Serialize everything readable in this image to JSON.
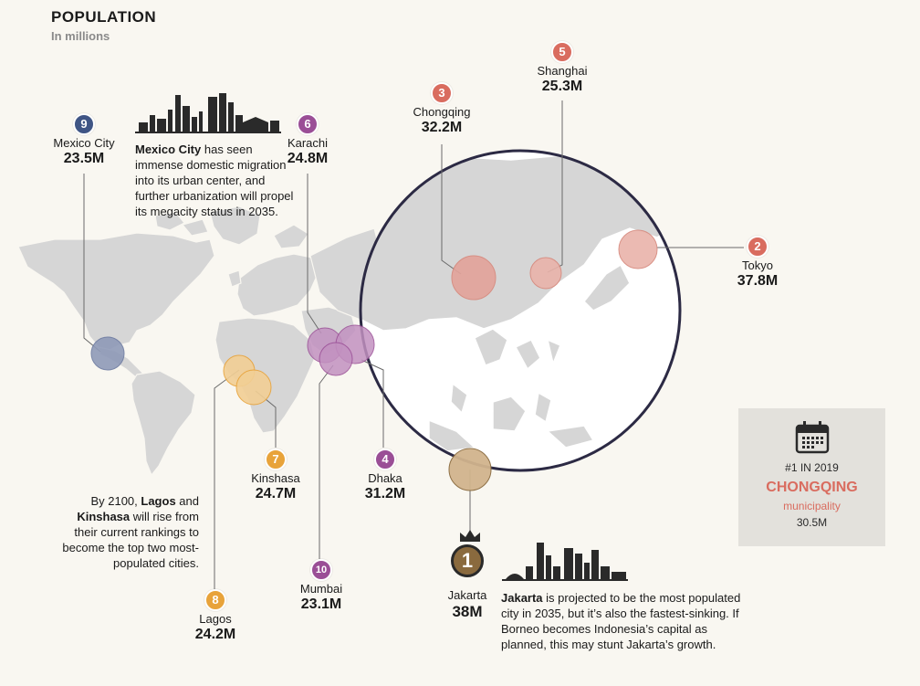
{
  "header": {
    "title": "POPULATION",
    "subtitle": "In millions"
  },
  "cities": [
    {
      "rank": "1",
      "name": "Jakarta",
      "population": "38M",
      "color": "#8a6a3e"
    },
    {
      "rank": "2",
      "name": "Tokyo",
      "population": "37.8M",
      "color": "#d96c5f"
    },
    {
      "rank": "3",
      "name": "Chongqing",
      "population": "32.2M",
      "color": "#d96c5f"
    },
    {
      "rank": "4",
      "name": "Dhaka",
      "population": "31.2M",
      "color": "#9a4e96"
    },
    {
      "rank": "5",
      "name": "Shanghai",
      "population": "25.3M",
      "color": "#d96c5f"
    },
    {
      "rank": "6",
      "name": "Karachi",
      "population": "24.8M",
      "color": "#9a4e96"
    },
    {
      "rank": "7",
      "name": "Kinshasa",
      "population": "24.7M",
      "color": "#e8a33a"
    },
    {
      "rank": "8",
      "name": "Lagos",
      "population": "24.2M",
      "color": "#e8a33a"
    },
    {
      "rank": "9",
      "name": "Mexico City",
      "population": "23.5M",
      "color": "#3f5585"
    },
    {
      "rank": "10",
      "name": "Mumbai",
      "population": "23.1M",
      "color": "#9a4e96"
    }
  ],
  "notes": {
    "mexico": {
      "bold": "Mexico City",
      "text": " has seen immense domestic migration into its urban center, and further urbanization will propel its megacity status in 2035."
    },
    "lagos": {
      "pre": "By 2100, ",
      "b1": "Lagos",
      "mid": " and ",
      "b2": "Kinshasa",
      "text": " will rise from their current rankings to become the top two most-populated cities."
    },
    "jakarta": {
      "bold": "Jakarta",
      "text": " is projected to be the most populated city in 2035, but it’s also the fastest-sinking. If Borneo becomes Indonesia’s capital as planned, this may stunt Jakarta’s growth."
    }
  },
  "card": {
    "line1": "#1 IN 2019",
    "city": "CHONGQING",
    "type": "municipality",
    "population": "30.5M"
  },
  "icons": {
    "card": "calendar-icon",
    "crown": "crown-icon",
    "skyline1": "mexico-city-skyline-icon",
    "skyline2": "jakarta-skyline-icon"
  }
}
